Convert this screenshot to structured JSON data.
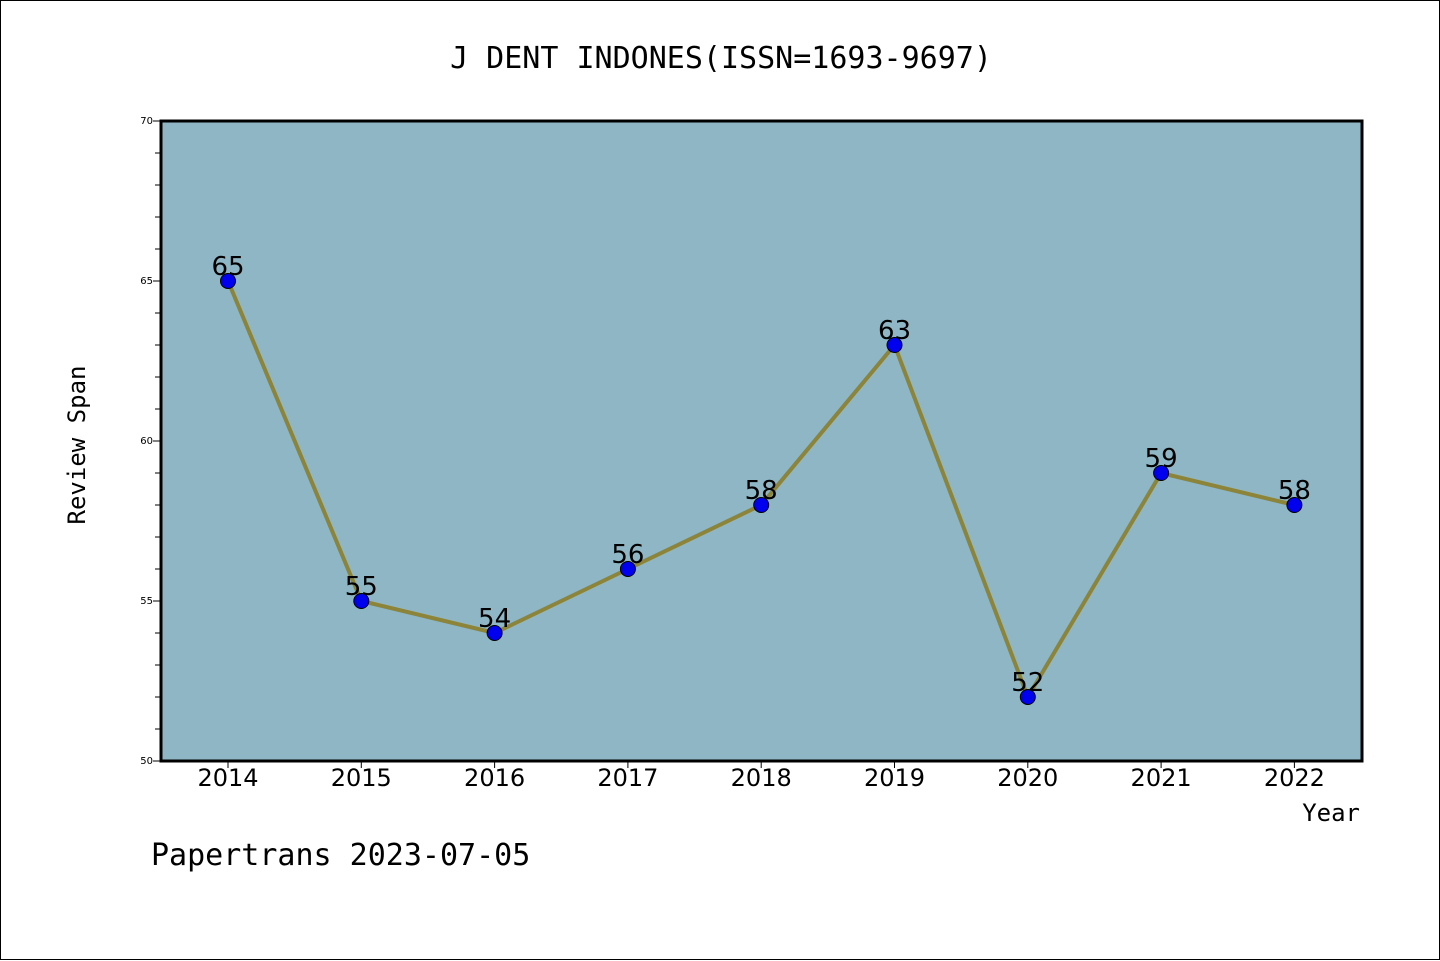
{
  "chart_data": {
    "type": "line",
    "title": "J DENT INDONES(ISSN=1693-9697)",
    "xlabel": "Year",
    "ylabel": "Review Span",
    "categories": [
      "2014",
      "2015",
      "2016",
      "2017",
      "2018",
      "2019",
      "2020",
      "2021",
      "2022"
    ],
    "values": [
      65,
      55,
      54,
      56,
      58,
      63,
      52,
      59,
      58
    ],
    "ylim": [
      50,
      70
    ],
    "yticks": [
      50,
      55,
      60,
      65,
      70
    ],
    "grid": false,
    "legend": "none",
    "colors": {
      "plot_background": "#8fb6c4",
      "line": "#8c8438",
      "marker": "#0000ee"
    }
  },
  "footer": "Papertrans 2023-07-05"
}
